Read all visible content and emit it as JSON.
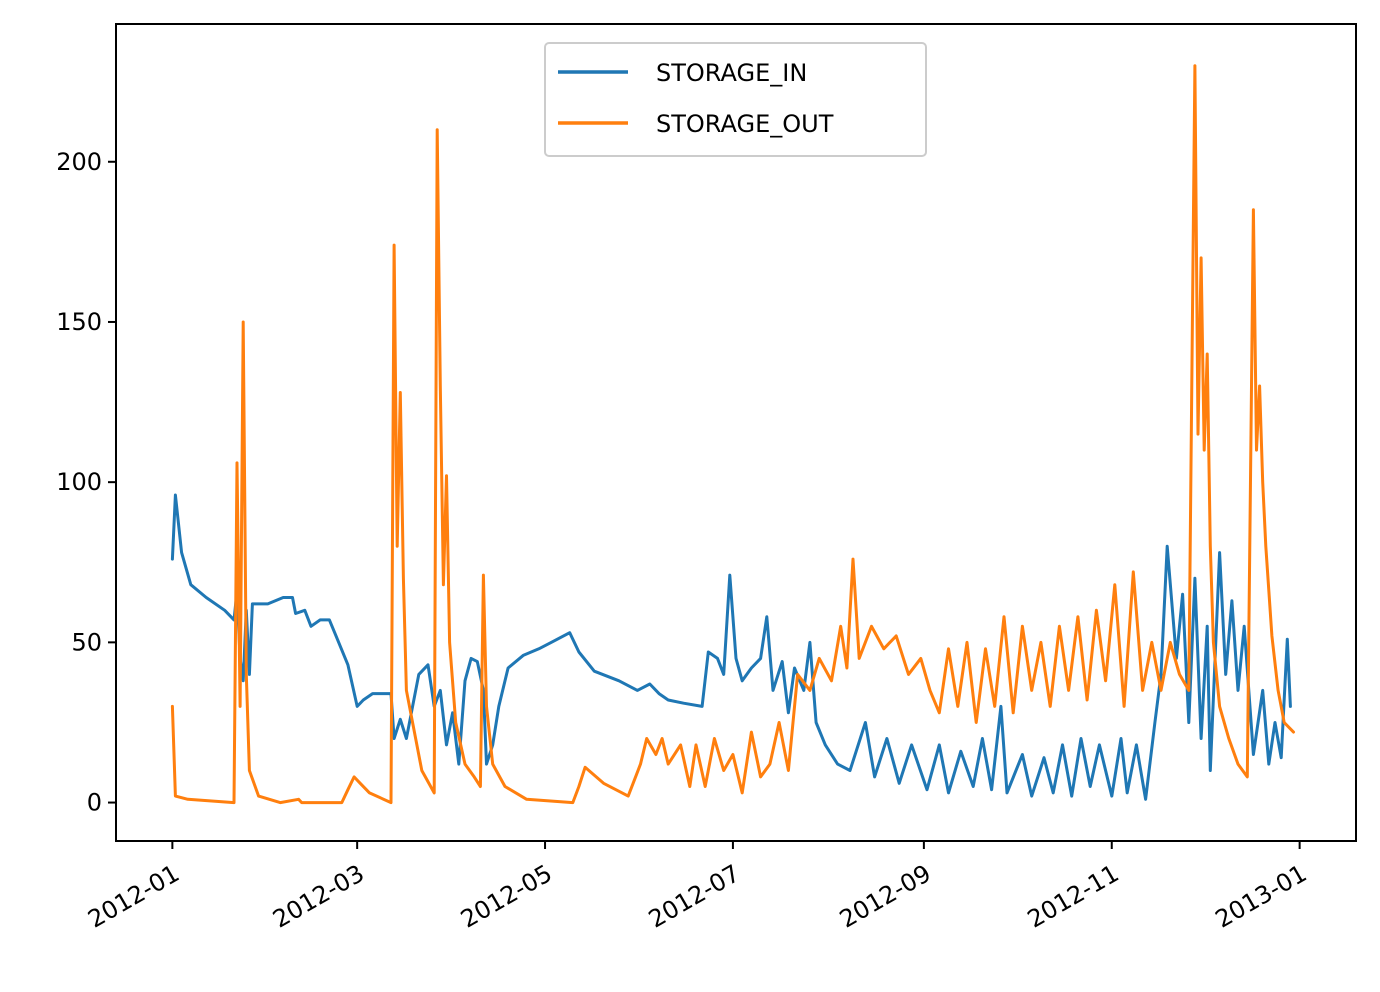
{
  "chart_data": {
    "type": "line",
    "title": "",
    "xlabel": "",
    "ylabel": "",
    "x_range": [
      "2012-01-01",
      "2013-01-01"
    ],
    "ylim": [
      -12,
      243
    ],
    "grid": false,
    "legend_position": "upper center",
    "x_ticks": [
      {
        "date": "2012-01-01",
        "label": "2012-01"
      },
      {
        "date": "2012-03-01",
        "label": "2012-03"
      },
      {
        "date": "2012-05-01",
        "label": "2012-05"
      },
      {
        "date": "2012-07-01",
        "label": "2012-07"
      },
      {
        "date": "2012-09-01",
        "label": "2012-09"
      },
      {
        "date": "2012-11-01",
        "label": "2012-11"
      },
      {
        "date": "2013-01-01",
        "label": "2013-01"
      }
    ],
    "y_ticks": [
      0,
      50,
      100,
      150,
      200
    ],
    "series": [
      {
        "name": "STORAGE_IN",
        "color": "#1f77b4",
        "points": [
          [
            "2012-01-01",
            76
          ],
          [
            "2012-01-02",
            96
          ],
          [
            "2012-01-04",
            78
          ],
          [
            "2012-01-07",
            68
          ],
          [
            "2012-01-12",
            64
          ],
          [
            "2012-01-18",
            60
          ],
          [
            "2012-01-21",
            57
          ],
          [
            "2012-01-22",
            66
          ],
          [
            "2012-01-23",
            45
          ],
          [
            "2012-01-24",
            38
          ],
          [
            "2012-01-25",
            60
          ],
          [
            "2012-01-26",
            40
          ],
          [
            "2012-01-27",
            62
          ],
          [
            "2012-02-01",
            62
          ],
          [
            "2012-02-06",
            64
          ],
          [
            "2012-02-09",
            64
          ],
          [
            "2012-02-10",
            59
          ],
          [
            "2012-02-13",
            60
          ],
          [
            "2012-02-15",
            55
          ],
          [
            "2012-02-18",
            57
          ],
          [
            "2012-02-21",
            57
          ],
          [
            "2012-02-24",
            50
          ],
          [
            "2012-02-27",
            43
          ],
          [
            "2012-03-01",
            30
          ],
          [
            "2012-03-03",
            32
          ],
          [
            "2012-03-06",
            34
          ],
          [
            "2012-03-12",
            34
          ],
          [
            "2012-03-13",
            20
          ],
          [
            "2012-03-15",
            26
          ],
          [
            "2012-03-17",
            20
          ],
          [
            "2012-03-19",
            30
          ],
          [
            "2012-03-21",
            40
          ],
          [
            "2012-03-24",
            43
          ],
          [
            "2012-03-26",
            30
          ],
          [
            "2012-03-28",
            35
          ],
          [
            "2012-03-30",
            18
          ],
          [
            "2012-04-01",
            28
          ],
          [
            "2012-04-03",
            12
          ],
          [
            "2012-04-05",
            38
          ],
          [
            "2012-04-07",
            45
          ],
          [
            "2012-04-09",
            44
          ],
          [
            "2012-04-11",
            35
          ],
          [
            "2012-04-12",
            12
          ],
          [
            "2012-04-14",
            18
          ],
          [
            "2012-04-16",
            30
          ],
          [
            "2012-04-19",
            42
          ],
          [
            "2012-04-24",
            46
          ],
          [
            "2012-04-29",
            48
          ],
          [
            "2012-05-03",
            50
          ],
          [
            "2012-05-09",
            53
          ],
          [
            "2012-05-12",
            47
          ],
          [
            "2012-05-17",
            41
          ],
          [
            "2012-05-25",
            38
          ],
          [
            "2012-05-31",
            35
          ],
          [
            "2012-06-04",
            37
          ],
          [
            "2012-06-07",
            34
          ],
          [
            "2012-06-10",
            32
          ],
          [
            "2012-06-15",
            31
          ],
          [
            "2012-06-21",
            30
          ],
          [
            "2012-06-23",
            47
          ],
          [
            "2012-06-26",
            45
          ],
          [
            "2012-06-28",
            40
          ],
          [
            "2012-06-30",
            71
          ],
          [
            "2012-07-02",
            45
          ],
          [
            "2012-07-04",
            38
          ],
          [
            "2012-07-07",
            42
          ],
          [
            "2012-07-10",
            45
          ],
          [
            "2012-07-12",
            58
          ],
          [
            "2012-07-14",
            35
          ],
          [
            "2012-07-17",
            44
          ],
          [
            "2012-07-19",
            28
          ],
          [
            "2012-07-21",
            42
          ],
          [
            "2012-07-24",
            35
          ],
          [
            "2012-07-26",
            50
          ],
          [
            "2012-07-28",
            25
          ],
          [
            "2012-07-31",
            18
          ],
          [
            "2012-08-04",
            12
          ],
          [
            "2012-08-08",
            10
          ],
          [
            "2012-08-13",
            25
          ],
          [
            "2012-08-16",
            8
          ],
          [
            "2012-08-20",
            20
          ],
          [
            "2012-08-24",
            6
          ],
          [
            "2012-08-28",
            18
          ],
          [
            "2012-09-02",
            4
          ],
          [
            "2012-09-06",
            18
          ],
          [
            "2012-09-09",
            3
          ],
          [
            "2012-09-13",
            16
          ],
          [
            "2012-09-17",
            5
          ],
          [
            "2012-09-20",
            20
          ],
          [
            "2012-09-23",
            4
          ],
          [
            "2012-09-26",
            30
          ],
          [
            "2012-09-28",
            3
          ],
          [
            "2012-10-03",
            15
          ],
          [
            "2012-10-06",
            2
          ],
          [
            "2012-10-10",
            14
          ],
          [
            "2012-10-13",
            3
          ],
          [
            "2012-10-16",
            18
          ],
          [
            "2012-10-19",
            2
          ],
          [
            "2012-10-22",
            20
          ],
          [
            "2012-10-25",
            5
          ],
          [
            "2012-10-28",
            18
          ],
          [
            "2012-11-01",
            2
          ],
          [
            "2012-11-04",
            20
          ],
          [
            "2012-11-06",
            3
          ],
          [
            "2012-11-09",
            18
          ],
          [
            "2012-11-12",
            1
          ],
          [
            "2012-11-15",
            25
          ],
          [
            "2012-11-17",
            40
          ],
          [
            "2012-11-19",
            80
          ],
          [
            "2012-11-22",
            45
          ],
          [
            "2012-11-24",
            65
          ],
          [
            "2012-11-26",
            25
          ],
          [
            "2012-11-28",
            70
          ],
          [
            "2012-11-30",
            20
          ],
          [
            "2012-12-02",
            55
          ],
          [
            "2012-12-03",
            10
          ],
          [
            "2012-12-06",
            78
          ],
          [
            "2012-12-08",
            40
          ],
          [
            "2012-12-10",
            63
          ],
          [
            "2012-12-12",
            35
          ],
          [
            "2012-12-14",
            55
          ],
          [
            "2012-12-17",
            15
          ],
          [
            "2012-12-20",
            35
          ],
          [
            "2012-12-22",
            12
          ],
          [
            "2012-12-24",
            25
          ],
          [
            "2012-12-26",
            14
          ],
          [
            "2012-12-28",
            51
          ],
          [
            "2012-12-29",
            30
          ]
        ]
      },
      {
        "name": "STORAGE_OUT",
        "color": "#ff7f0e",
        "points": [
          [
            "2012-01-01",
            30
          ],
          [
            "2012-01-02",
            2
          ],
          [
            "2012-01-06",
            1
          ],
          [
            "2012-01-21",
            0
          ],
          [
            "2012-01-22",
            106
          ],
          [
            "2012-01-23",
            30
          ],
          [
            "2012-01-24",
            150
          ],
          [
            "2012-01-25",
            40
          ],
          [
            "2012-01-26",
            10
          ],
          [
            "2012-01-29",
            2
          ],
          [
            "2012-02-05",
            0
          ],
          [
            "2012-02-11",
            1
          ],
          [
            "2012-02-12",
            0
          ],
          [
            "2012-02-25",
            0
          ],
          [
            "2012-02-27",
            4
          ],
          [
            "2012-02-29",
            8
          ],
          [
            "2012-03-02",
            6
          ],
          [
            "2012-03-05",
            3
          ],
          [
            "2012-03-12",
            0
          ],
          [
            "2012-03-13",
            174
          ],
          [
            "2012-03-14",
            80
          ],
          [
            "2012-03-15",
            128
          ],
          [
            "2012-03-16",
            70
          ],
          [
            "2012-03-17",
            35
          ],
          [
            "2012-03-22",
            10
          ],
          [
            "2012-03-26",
            3
          ],
          [
            "2012-03-27",
            210
          ],
          [
            "2012-03-28",
            130
          ],
          [
            "2012-03-29",
            68
          ],
          [
            "2012-03-30",
            102
          ],
          [
            "2012-03-31",
            50
          ],
          [
            "2012-04-02",
            25
          ],
          [
            "2012-04-05",
            12
          ],
          [
            "2012-04-08",
            8
          ],
          [
            "2012-04-10",
            5
          ],
          [
            "2012-04-11",
            71
          ],
          [
            "2012-04-12",
            30
          ],
          [
            "2012-04-14",
            12
          ],
          [
            "2012-04-18",
            5
          ],
          [
            "2012-04-25",
            1
          ],
          [
            "2012-05-10",
            0
          ],
          [
            "2012-05-12",
            5
          ],
          [
            "2012-05-14",
            11
          ],
          [
            "2012-05-20",
            6
          ],
          [
            "2012-05-28",
            2
          ],
          [
            "2012-06-01",
            12
          ],
          [
            "2012-06-03",
            20
          ],
          [
            "2012-06-06",
            15
          ],
          [
            "2012-06-08",
            20
          ],
          [
            "2012-06-10",
            12
          ],
          [
            "2012-06-14",
            18
          ],
          [
            "2012-06-17",
            5
          ],
          [
            "2012-06-19",
            18
          ],
          [
            "2012-06-22",
            5
          ],
          [
            "2012-06-25",
            20
          ],
          [
            "2012-06-28",
            10
          ],
          [
            "2012-07-01",
            15
          ],
          [
            "2012-07-04",
            3
          ],
          [
            "2012-07-07",
            22
          ],
          [
            "2012-07-10",
            8
          ],
          [
            "2012-07-13",
            12
          ],
          [
            "2012-07-16",
            25
          ],
          [
            "2012-07-19",
            10
          ],
          [
            "2012-07-22",
            40
          ],
          [
            "2012-07-26",
            35
          ],
          [
            "2012-07-29",
            45
          ],
          [
            "2012-08-02",
            38
          ],
          [
            "2012-08-05",
            55
          ],
          [
            "2012-08-07",
            42
          ],
          [
            "2012-08-09",
            76
          ],
          [
            "2012-08-11",
            45
          ],
          [
            "2012-08-15",
            55
          ],
          [
            "2012-08-19",
            48
          ],
          [
            "2012-08-23",
            52
          ],
          [
            "2012-08-27",
            40
          ],
          [
            "2012-08-31",
            45
          ],
          [
            "2012-09-03",
            35
          ],
          [
            "2012-09-06",
            28
          ],
          [
            "2012-09-09",
            48
          ],
          [
            "2012-09-12",
            30
          ],
          [
            "2012-09-15",
            50
          ],
          [
            "2012-09-18",
            25
          ],
          [
            "2012-09-21",
            48
          ],
          [
            "2012-09-24",
            30
          ],
          [
            "2012-09-27",
            58
          ],
          [
            "2012-09-30",
            28
          ],
          [
            "2012-10-03",
            55
          ],
          [
            "2012-10-06",
            35
          ],
          [
            "2012-10-09",
            50
          ],
          [
            "2012-10-12",
            30
          ],
          [
            "2012-10-15",
            55
          ],
          [
            "2012-10-18",
            35
          ],
          [
            "2012-10-21",
            58
          ],
          [
            "2012-10-24",
            32
          ],
          [
            "2012-10-27",
            60
          ],
          [
            "2012-10-30",
            38
          ],
          [
            "2012-11-02",
            68
          ],
          [
            "2012-11-05",
            30
          ],
          [
            "2012-11-08",
            72
          ],
          [
            "2012-11-11",
            35
          ],
          [
            "2012-11-14",
            50
          ],
          [
            "2012-11-17",
            35
          ],
          [
            "2012-11-20",
            50
          ],
          [
            "2012-11-23",
            40
          ],
          [
            "2012-11-26",
            35
          ],
          [
            "2012-11-28",
            230
          ],
          [
            "2012-11-29",
            115
          ],
          [
            "2012-11-30",
            170
          ],
          [
            "2012-12-01",
            110
          ],
          [
            "2012-12-02",
            140
          ],
          [
            "2012-12-03",
            80
          ],
          [
            "2012-12-04",
            50
          ],
          [
            "2012-12-06",
            30
          ],
          [
            "2012-12-09",
            20
          ],
          [
            "2012-12-12",
            12
          ],
          [
            "2012-12-15",
            8
          ],
          [
            "2012-12-17",
            185
          ],
          [
            "2012-12-18",
            110
          ],
          [
            "2012-12-19",
            130
          ],
          [
            "2012-12-20",
            100
          ],
          [
            "2012-12-21",
            80
          ],
          [
            "2012-12-23",
            52
          ],
          [
            "2012-12-25",
            35
          ],
          [
            "2012-12-27",
            25
          ],
          [
            "2012-12-30",
            22
          ]
        ]
      }
    ]
  }
}
